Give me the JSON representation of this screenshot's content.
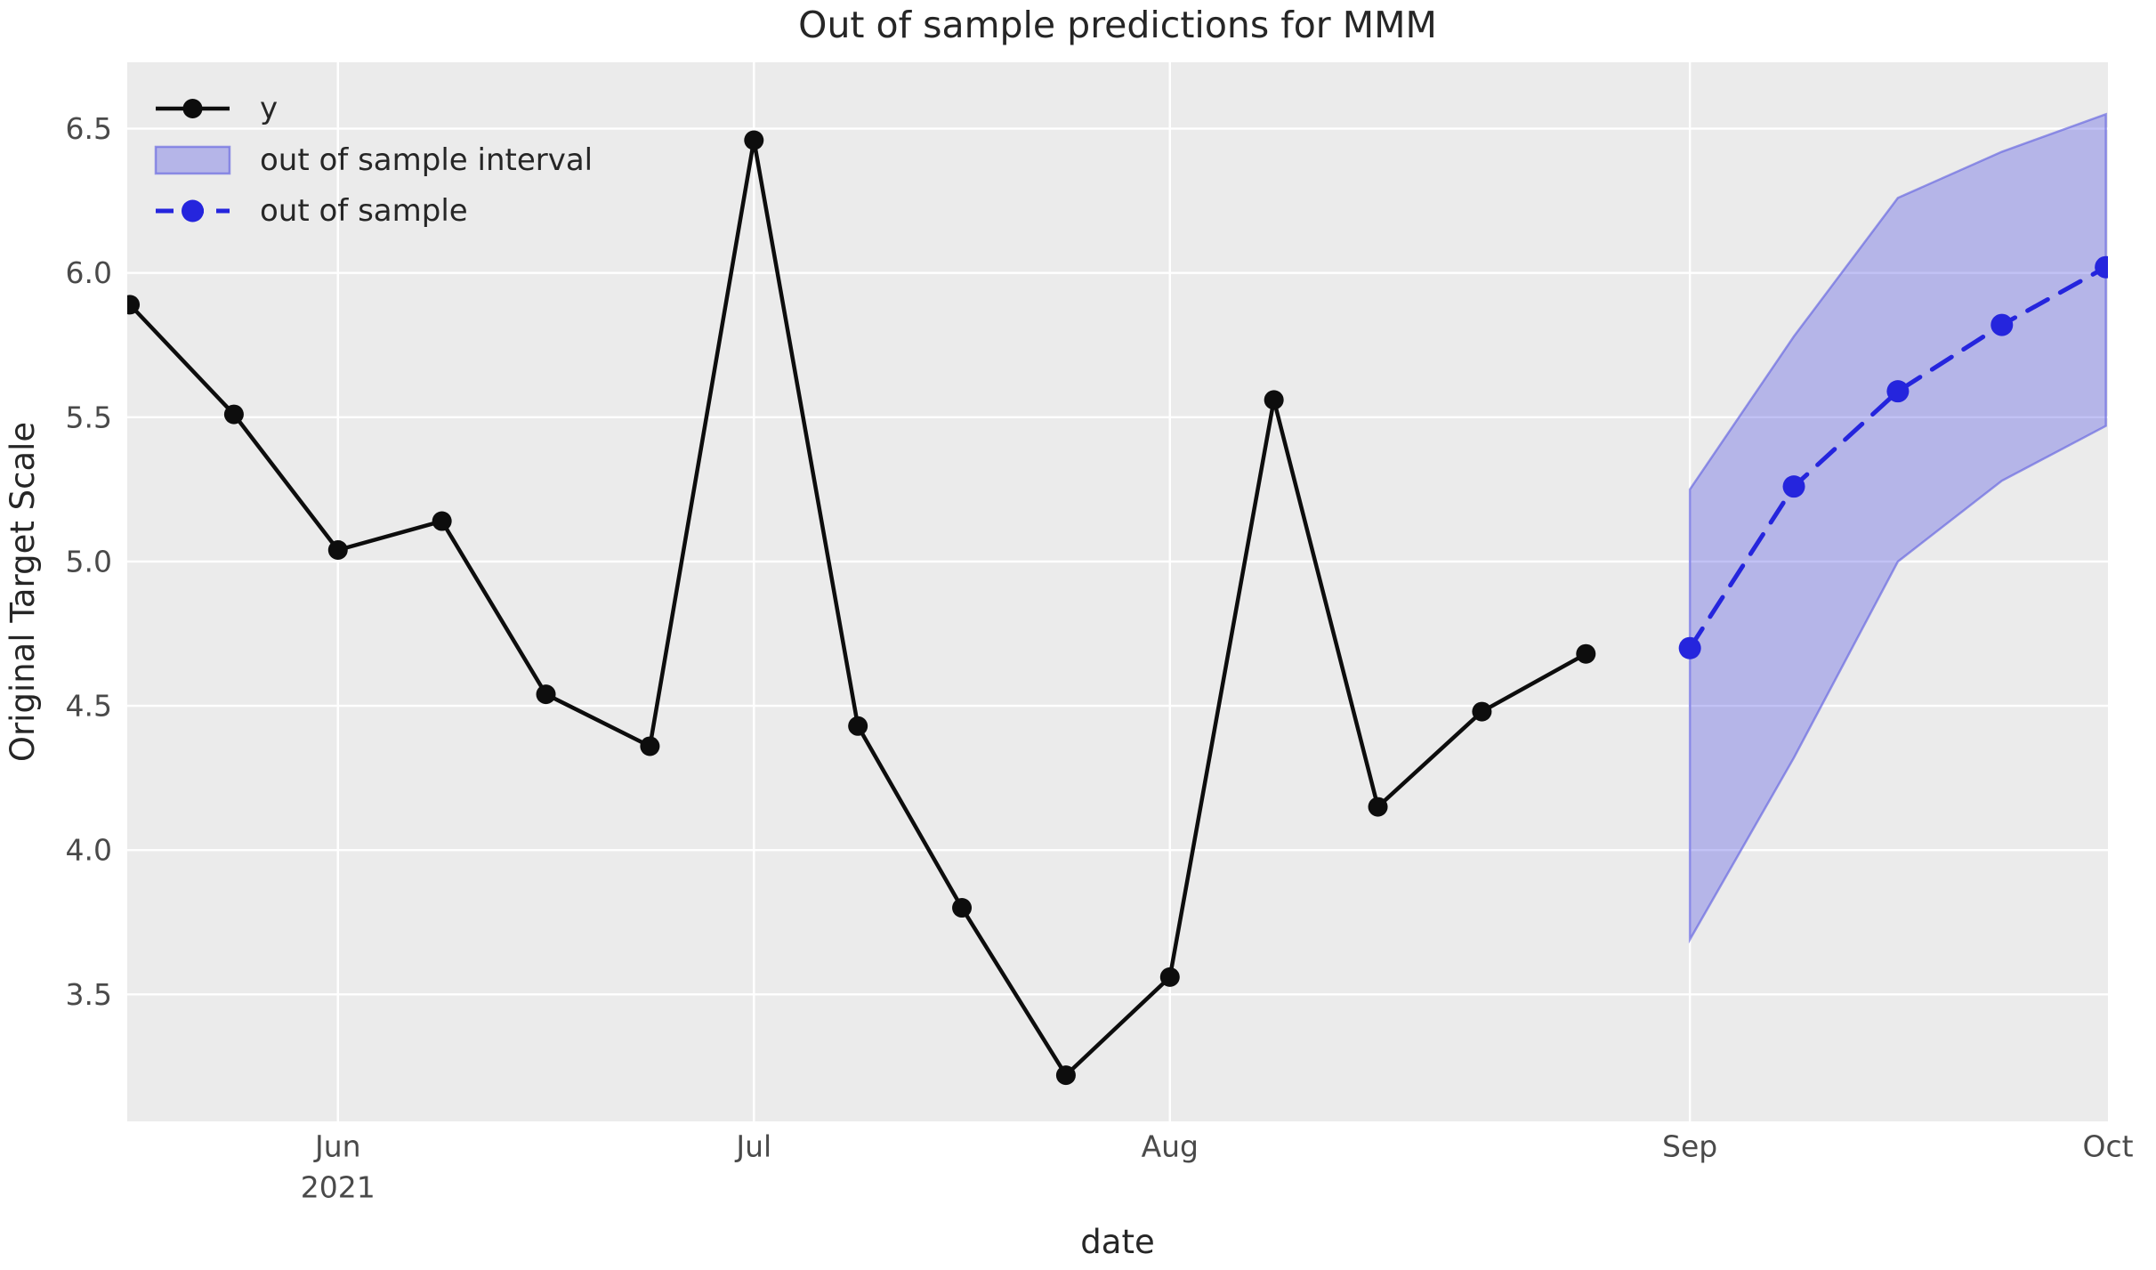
{
  "title": "Out of sample predictions for MMM",
  "axes": {
    "xlabel": "date",
    "ylabel": "Original Target Scale"
  },
  "legend": [
    {
      "label": "y",
      "type": "line-marker"
    },
    {
      "label": "out of sample interval",
      "type": "patch"
    },
    {
      "label": "out of sample",
      "type": "dashed-line-marker"
    }
  ],
  "colors": {
    "figure_bg": "#ffffff",
    "axes_bg": "#ebebeb",
    "grid": "#ffffff",
    "y_series": "#0d0d0d",
    "out_of_sample_series": "#2525dd",
    "band_fill": "rgba(80,80,225,0.35)",
    "band_edge": "rgba(100,100,225,0.65)",
    "tick_text": "#4a4a4a",
    "label_text": "#262626"
  },
  "chart_data": {
    "type": "line",
    "title": "Out of sample predictions for MMM",
    "xlabel": "date",
    "ylabel": "Original Target Scale",
    "grid": true,
    "legend_position": "upper left",
    "x_axis": {
      "kind": "date-index",
      "lim": [
        -0.026,
        19.02
      ],
      "ticks": [
        {
          "label": "Jun",
          "sublabel": "2021",
          "index": 2,
          "gridline": true
        },
        {
          "label": "Jul",
          "index": 6,
          "gridline": true
        },
        {
          "label": "Aug",
          "index": 10,
          "gridline": true
        },
        {
          "label": "Sep",
          "index": 15,
          "gridline": true
        },
        {
          "label": "Oct",
          "index": 19.02,
          "gridline": false
        }
      ]
    },
    "y_axis": {
      "lim": [
        3.06,
        6.73
      ],
      "ticks": [
        "3.5",
        "4.0",
        "4.5",
        "5.0",
        "5.5",
        "6.0",
        "6.5"
      ]
    },
    "series": [
      {
        "name": "y",
        "style": "solid",
        "marker": "circle",
        "x_indices": [
          0,
          1,
          2,
          3,
          4,
          5,
          6,
          7,
          8,
          9,
          10,
          11,
          12,
          13,
          14
        ],
        "values": [
          5.89,
          5.51,
          5.04,
          5.14,
          4.54,
          4.36,
          6.46,
          4.43,
          3.8,
          3.22,
          3.56,
          5.56,
          4.15,
          4.48,
          4.68
        ]
      },
      {
        "name": "out of sample",
        "style": "dashed",
        "marker": "circle",
        "x_indices": [
          15,
          16,
          17,
          18,
          19
        ],
        "values": [
          4.7,
          5.26,
          5.59,
          5.82,
          6.02
        ]
      }
    ],
    "interval_band": {
      "name": "out of sample interval",
      "x_indices": [
        15,
        16,
        17,
        18,
        19
      ],
      "lower": [
        3.69,
        4.32,
        5.0,
        5.28,
        5.47
      ],
      "upper": [
        5.25,
        5.78,
        6.26,
        6.42,
        6.55
      ]
    }
  }
}
